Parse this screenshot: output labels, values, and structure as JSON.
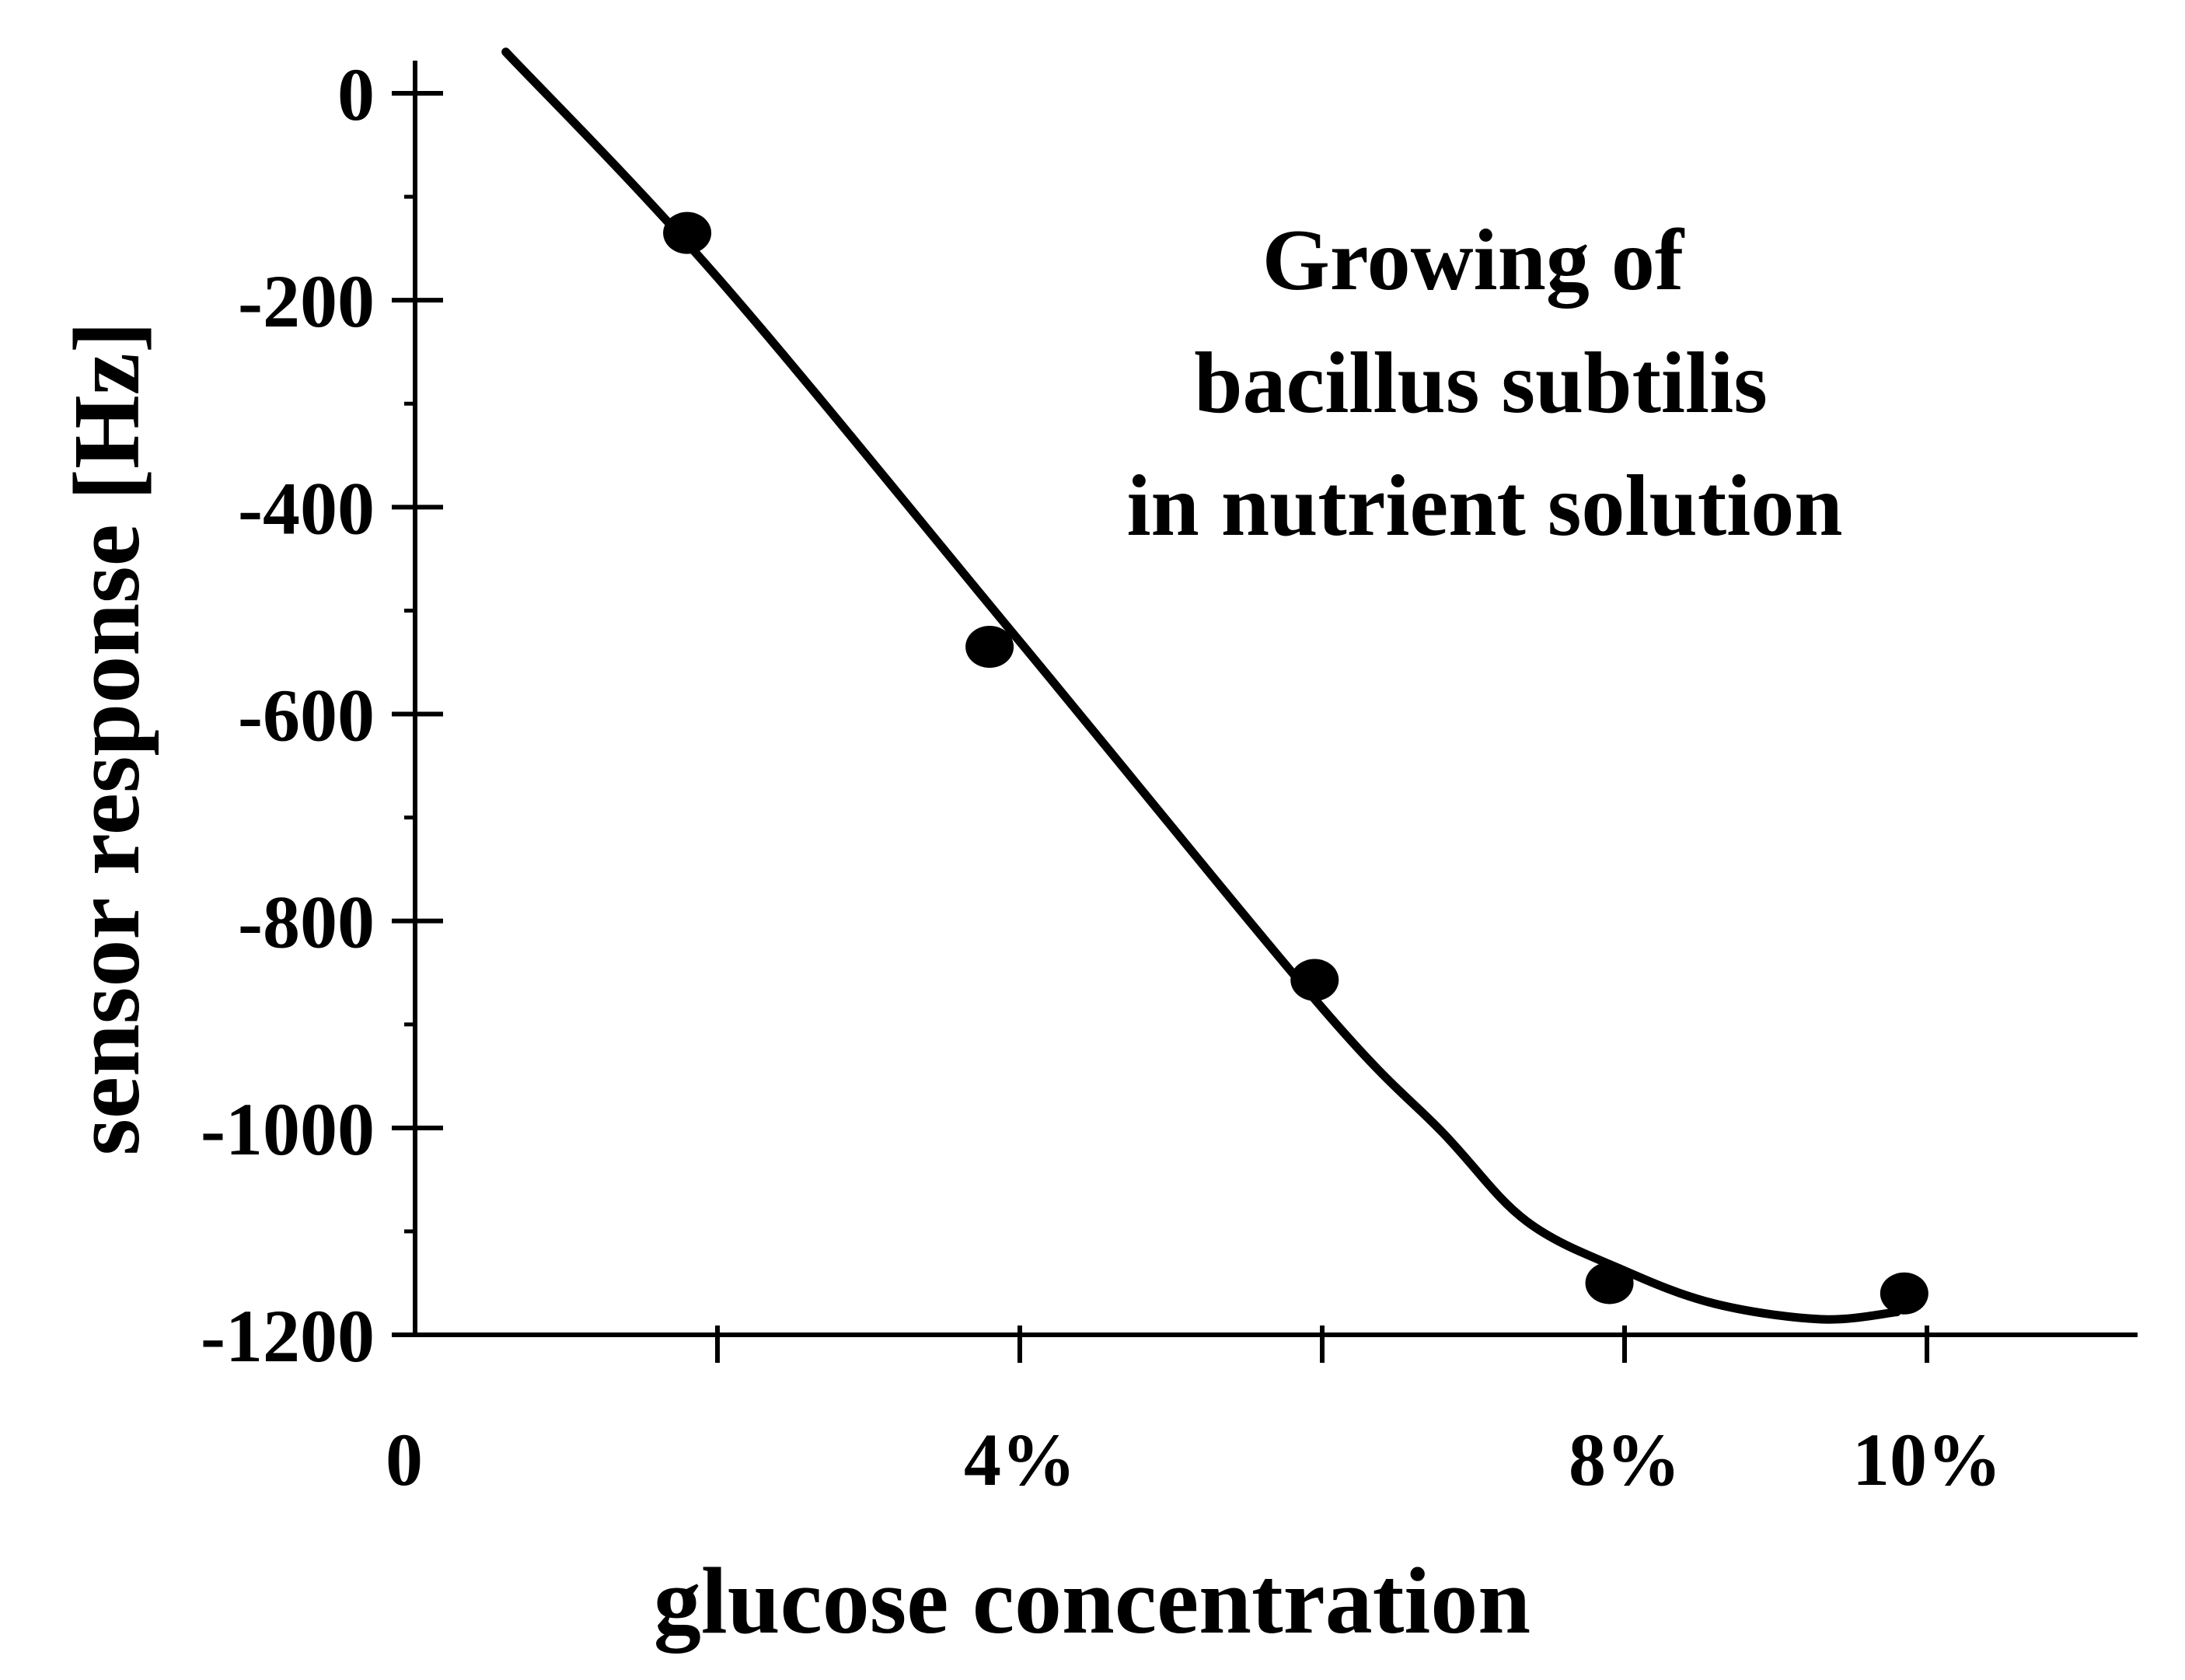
{
  "chart_data": {
    "type": "scatter",
    "title": "",
    "xlabel": "glucose concentration",
    "ylabel": "sensor response [Hz]",
    "xlim": [
      0,
      11.4
    ],
    "ylim": [
      -1200,
      40
    ],
    "x_ticks": [
      0,
      2,
      4,
      6,
      8,
      10
    ],
    "x_tick_labels": [
      {
        "value": 0,
        "label": "0"
      },
      {
        "value": 4,
        "label": "4%"
      },
      {
        "value": 8,
        "label": "8%"
      },
      {
        "value": 10,
        "label": "10%"
      }
    ],
    "y_ticks": [
      0,
      -200,
      -400,
      -600,
      -800,
      -1000,
      -1200
    ],
    "y_minor_ticks": [
      -100,
      -300,
      -500,
      -700,
      -900,
      -1100
    ],
    "y_tick_labels": [
      "0",
      "-200",
      "-400",
      "-600",
      "-800",
      "-1000",
      "-1200"
    ],
    "grid": false,
    "annotation": {
      "lines": [
        "Growing of",
        "bacillus subtilis",
        "in nutrient solution"
      ]
    },
    "series": [
      {
        "kind": "points",
        "color": "#000000",
        "points": [
          {
            "x": 1.8,
            "y": -135
          },
          {
            "x": 3.8,
            "y": -535
          },
          {
            "x": 5.95,
            "y": -857
          },
          {
            "x": 7.9,
            "y": -1150
          },
          {
            "x": 9.85,
            "y": -1160
          }
        ]
      },
      {
        "kind": "fit-curve",
        "color": "#000000",
        "points": [
          {
            "x": 0.6,
            "y": 40
          },
          {
            "x": 2.0,
            "y": -178
          },
          {
            "x": 4.0,
            "y": -530
          },
          {
            "x": 6.0,
            "y": -884
          },
          {
            "x": 6.8,
            "y": -1005
          },
          {
            "x": 7.35,
            "y": -1090
          },
          {
            "x": 8.0,
            "y": -1138
          },
          {
            "x": 8.6,
            "y": -1170
          },
          {
            "x": 9.3,
            "y": -1185
          },
          {
            "x": 9.8,
            "y": -1178
          }
        ]
      }
    ]
  }
}
